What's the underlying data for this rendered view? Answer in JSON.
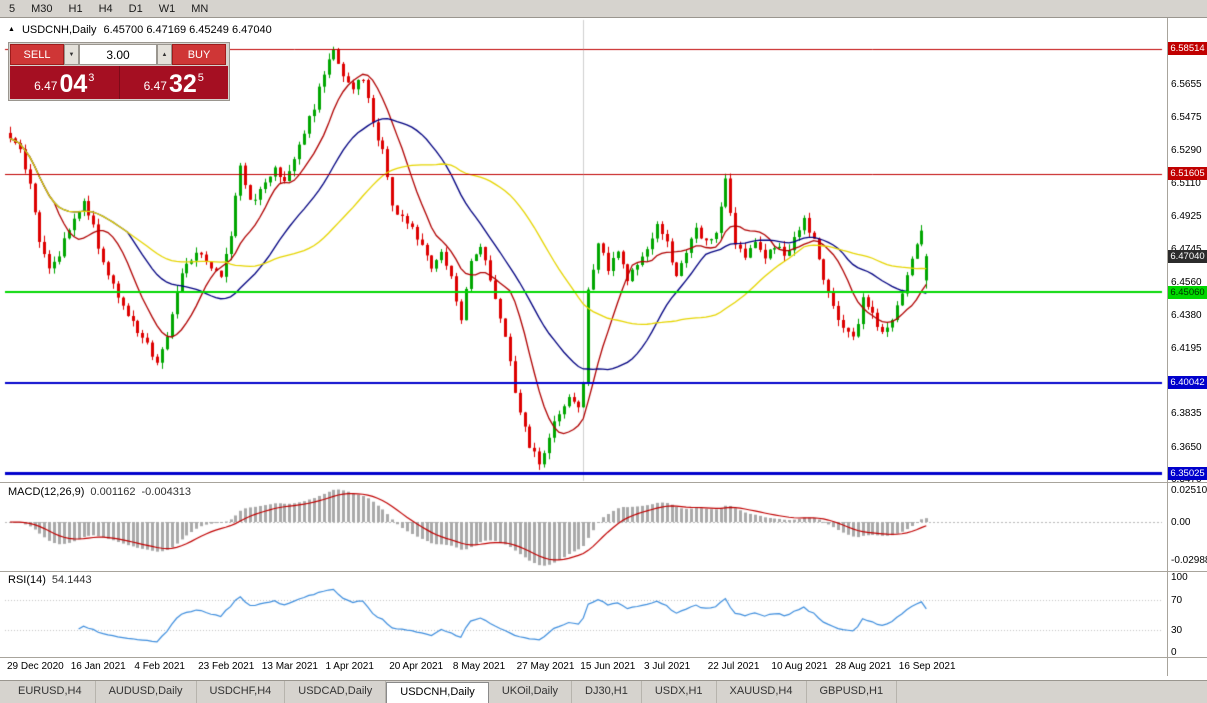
{
  "toolbar": {
    "timeframes": [
      "5",
      "M30",
      "H1",
      "H4",
      "D1",
      "W1",
      "MN"
    ]
  },
  "chart": {
    "symbol_title": "USDCNH,Daily",
    "ohlc_text": "6.45700 6.47169 6.45249 6.47040"
  },
  "icons": {
    "symbol_arrow": "▲",
    "volume_up": "▲",
    "volume_down": "▼"
  },
  "trade_panel": {
    "sell_label": "SELL",
    "buy_label": "BUY",
    "volume": "3.00",
    "bid": {
      "prefix": "6.47",
      "big": "04",
      "sup": "3"
    },
    "ask": {
      "prefix": "6.47",
      "big": "32",
      "sup": "5"
    }
  },
  "indicators": {
    "macd": {
      "title": "MACD(12,26,9)",
      "value1": "0.001162",
      "value2": "-0.004313",
      "axis": [
        {
          "label": "0.025108",
          "value": 0.025108
        },
        {
          "label": "0.00",
          "value": 0
        },
        {
          "label": "-0.02988",
          "value": -0.02988
        }
      ]
    },
    "rsi": {
      "title": "RSI(14)",
      "value": "54.1443",
      "axis": [
        {
          "label": "100",
          "value": 100
        },
        {
          "label": "70",
          "value": 70
        },
        {
          "label": "30",
          "value": 30
        },
        {
          "label": "0",
          "value": 0
        }
      ],
      "levels": [
        70,
        30
      ]
    }
  },
  "x_axis": {
    "dates": [
      "29 Dec 2020",
      "16 Jan 2021",
      "4 Feb 2021",
      "23 Feb 2021",
      "13 Mar 2021",
      "1 Apr 2021",
      "20 Apr 2021",
      "8 May 2021",
      "27 May 2021",
      "15 Jun 2021",
      "3 Jul 2021",
      "22 Jul 2021",
      "10 Aug 2021",
      "28 Aug 2021",
      "16 Sep 2021"
    ]
  },
  "y_axis": {
    "ticks": [
      "6.5655",
      "6.5475",
      "6.5290",
      "6.5110",
      "6.4925",
      "6.4745",
      "6.4560",
      "6.4380",
      "6.4195",
      "6.3835",
      "6.3650",
      "6.3470"
    ]
  },
  "price_badges": [
    {
      "value": 6.58514,
      "label": "6.58514",
      "bg": "#c00000",
      "fg": "#ffffff"
    },
    {
      "value": 6.51605,
      "label": "6.51605",
      "bg": "#c00000",
      "fg": "#ffffff"
    },
    {
      "value": 6.4704,
      "label": "6.47040",
      "bg": "#2b2b2b",
      "fg": "#ffffff"
    },
    {
      "value": 6.4506,
      "label": "6.45060",
      "bg": "#00d800",
      "fg": "#003300"
    },
    {
      "value": 6.40042,
      "label": "6.40042",
      "bg": "#0000cc",
      "fg": "#ffffff"
    },
    {
      "value": 6.35025,
      "label": "6.35025",
      "bg": "#0000cc",
      "fg": "#ffffff"
    }
  ],
  "levels": [
    {
      "price": 6.58514,
      "color": "#c00000",
      "width": 1
    },
    {
      "price": 6.51605,
      "color": "#c00000",
      "width": 1
    },
    {
      "price": 6.4506,
      "color": "#00d800",
      "width": 2
    },
    {
      "price": 6.40042,
      "color": "#0000cc",
      "width": 2
    },
    {
      "price": 6.35025,
      "color": "#0000cc",
      "width": 3
    }
  ],
  "chart_data": {
    "type": "candlestick",
    "symbol": "USDCNH",
    "timeframe": "Daily",
    "x_range": [
      "29 Dec 2020",
      "16 Sep 2021"
    ],
    "y_range": [
      6.345,
      6.6
    ],
    "bar_count": 188,
    "seed": 7,
    "noise": 0.0022,
    "wick": 0.0035,
    "separator_x_index": 117,
    "close_anchors": [
      [
        0,
        6.536
      ],
      [
        2,
        6.528
      ],
      [
        4,
        6.512
      ],
      [
        6,
        6.478
      ],
      [
        8,
        6.462
      ],
      [
        10,
        6.472
      ],
      [
        13,
        6.492
      ],
      [
        15,
        6.503
      ],
      [
        17,
        6.487
      ],
      [
        19,
        6.466
      ],
      [
        21,
        6.455
      ],
      [
        23,
        6.442
      ],
      [
        26,
        6.428
      ],
      [
        28,
        6.422
      ],
      [
        30,
        6.412
      ],
      [
        32,
        6.424
      ],
      [
        34,
        6.45
      ],
      [
        36,
        6.468
      ],
      [
        39,
        6.473
      ],
      [
        41,
        6.463
      ],
      [
        43,
        6.459
      ],
      [
        45,
        6.482
      ],
      [
        47,
        6.522
      ],
      [
        49,
        6.5
      ],
      [
        52,
        6.509
      ],
      [
        54,
        6.519
      ],
      [
        56,
        6.512
      ],
      [
        58,
        6.523
      ],
      [
        60,
        6.54
      ],
      [
        62,
        6.553
      ],
      [
        64,
        6.572
      ],
      [
        66,
        6.583
      ],
      [
        68,
        6.57
      ],
      [
        70,
        6.563
      ],
      [
        72,
        6.57
      ],
      [
        74,
        6.545
      ],
      [
        76,
        6.528
      ],
      [
        78,
        6.499
      ],
      [
        80,
        6.492
      ],
      [
        82,
        6.485
      ],
      [
        84,
        6.478
      ],
      [
        86,
        6.464
      ],
      [
        88,
        6.471
      ],
      [
        90,
        6.458
      ],
      [
        92,
        6.436
      ],
      [
        94,
        6.466
      ],
      [
        96,
        6.475
      ],
      [
        98,
        6.458
      ],
      [
        100,
        6.438
      ],
      [
        102,
        6.412
      ],
      [
        104,
        6.382
      ],
      [
        106,
        6.366
      ],
      [
        108,
        6.356
      ],
      [
        110,
        6.37
      ],
      [
        112,
        6.384
      ],
      [
        114,
        6.392
      ],
      [
        116,
        6.386
      ],
      [
        117,
        6.402
      ],
      [
        118,
        6.452
      ],
      [
        120,
        6.477
      ],
      [
        122,
        6.464
      ],
      [
        124,
        6.472
      ],
      [
        126,
        6.457
      ],
      [
        128,
        6.467
      ],
      [
        130,
        6.474
      ],
      [
        132,
        6.49
      ],
      [
        134,
        6.477
      ],
      [
        136,
        6.461
      ],
      [
        138,
        6.474
      ],
      [
        140,
        6.486
      ],
      [
        142,
        6.477
      ],
      [
        144,
        6.482
      ],
      [
        146,
        6.513
      ],
      [
        148,
        6.477
      ],
      [
        150,
        6.471
      ],
      [
        152,
        6.477
      ],
      [
        154,
        6.467
      ],
      [
        156,
        6.477
      ],
      [
        158,
        6.471
      ],
      [
        160,
        6.48
      ],
      [
        162,
        6.492
      ],
      [
        164,
        6.479
      ],
      [
        166,
        6.457
      ],
      [
        168,
        6.441
      ],
      [
        170,
        6.431
      ],
      [
        172,
        6.424
      ],
      [
        174,
        6.446
      ],
      [
        176,
        6.439
      ],
      [
        178,
        6.427
      ],
      [
        180,
        6.433
      ],
      [
        182,
        6.451
      ],
      [
        184,
        6.468
      ],
      [
        186,
        6.486
      ],
      [
        187,
        6.457
      ]
    ],
    "last_candle": {
      "o": 6.457,
      "h": 6.47169,
      "l": 6.45249,
      "c": 6.4704
    },
    "moving_averages": [
      {
        "period": 10,
        "color": "#b00000"
      },
      {
        "period": 25,
        "color": "#000080"
      },
      {
        "period": 45,
        "color": "#e6d500"
      }
    ],
    "macd": {
      "fast": 12,
      "slow": 26,
      "signal": 9,
      "hist_color": "#a9a9a9",
      "signal_color": "#c00000"
    },
    "rsi": {
      "period": 14,
      "color": "#3e8ede"
    },
    "up_color": "#00a600",
    "down_color": "#dd0000"
  },
  "tabs": [
    {
      "label": "EURUSD,H4",
      "active": false
    },
    {
      "label": "AUDUSD,Daily",
      "active": false
    },
    {
      "label": "USDCHF,H4",
      "active": false
    },
    {
      "label": "USDCAD,Daily",
      "active": false
    },
    {
      "label": "USDCNH,Daily",
      "active": true
    },
    {
      "label": "UKOil,Daily",
      "active": false
    },
    {
      "label": "DJ30,H1",
      "active": false
    },
    {
      "label": "USDX,H1",
      "active": false
    },
    {
      "label": "XAUUSD,H4",
      "active": false
    },
    {
      "label": "GBPUSD,H1",
      "active": false
    }
  ]
}
